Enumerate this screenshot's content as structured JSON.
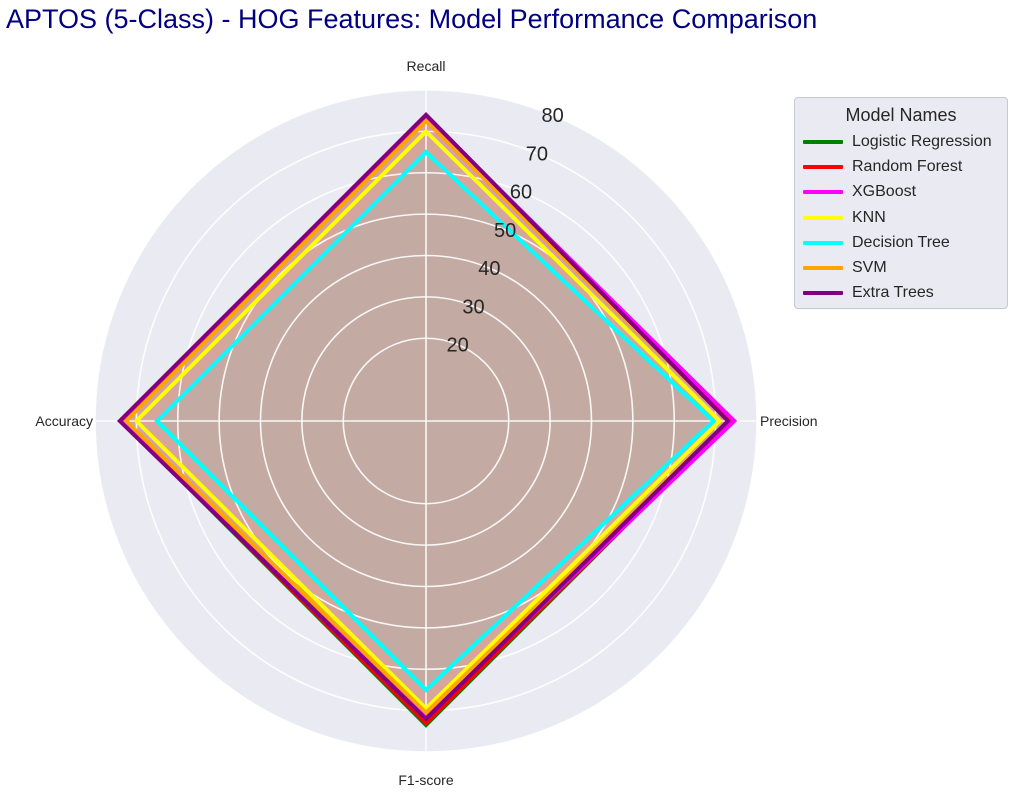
{
  "chart_data": {
    "type": "radar",
    "title": "APTOS (5-Class) - HOG Features: Model Performance Comparison",
    "axes": [
      "Recall",
      "Precision",
      "F1-score",
      "Accuracy"
    ],
    "rticks": [
      20,
      30,
      40,
      50,
      60,
      70,
      80
    ],
    "rlim": [
      0,
      80
    ],
    "grid": true,
    "legend_title": "Model Names",
    "legend_placement": "right",
    "series": [
      {
        "name": "Logistic Regression",
        "color": "#008000",
        "values": [
          73.5,
          73.5,
          73.5,
          73.5
        ]
      },
      {
        "name": "Random Forest",
        "color": "#ff0000",
        "values": [
          73.5,
          73.5,
          73.0,
          73.5
        ]
      },
      {
        "name": "XGBoost",
        "color": "#ff00ff",
        "values": [
          73.5,
          74.5,
          71.5,
          73.5
        ]
      },
      {
        "name": "KNN",
        "color": "#ffff00",
        "values": [
          70.0,
          71.0,
          69.5,
          70.0
        ]
      },
      {
        "name": "Decision Tree",
        "color": "#00ffff",
        "values": [
          65.0,
          69.5,
          65.0,
          65.0
        ]
      },
      {
        "name": "SVM",
        "color": "#ffa500",
        "values": [
          72.5,
          73.0,
          70.5,
          72.5
        ]
      },
      {
        "name": "Extra Trees",
        "color": "#800080",
        "values": [
          74.0,
          73.0,
          72.0,
          74.0
        ]
      }
    ]
  }
}
